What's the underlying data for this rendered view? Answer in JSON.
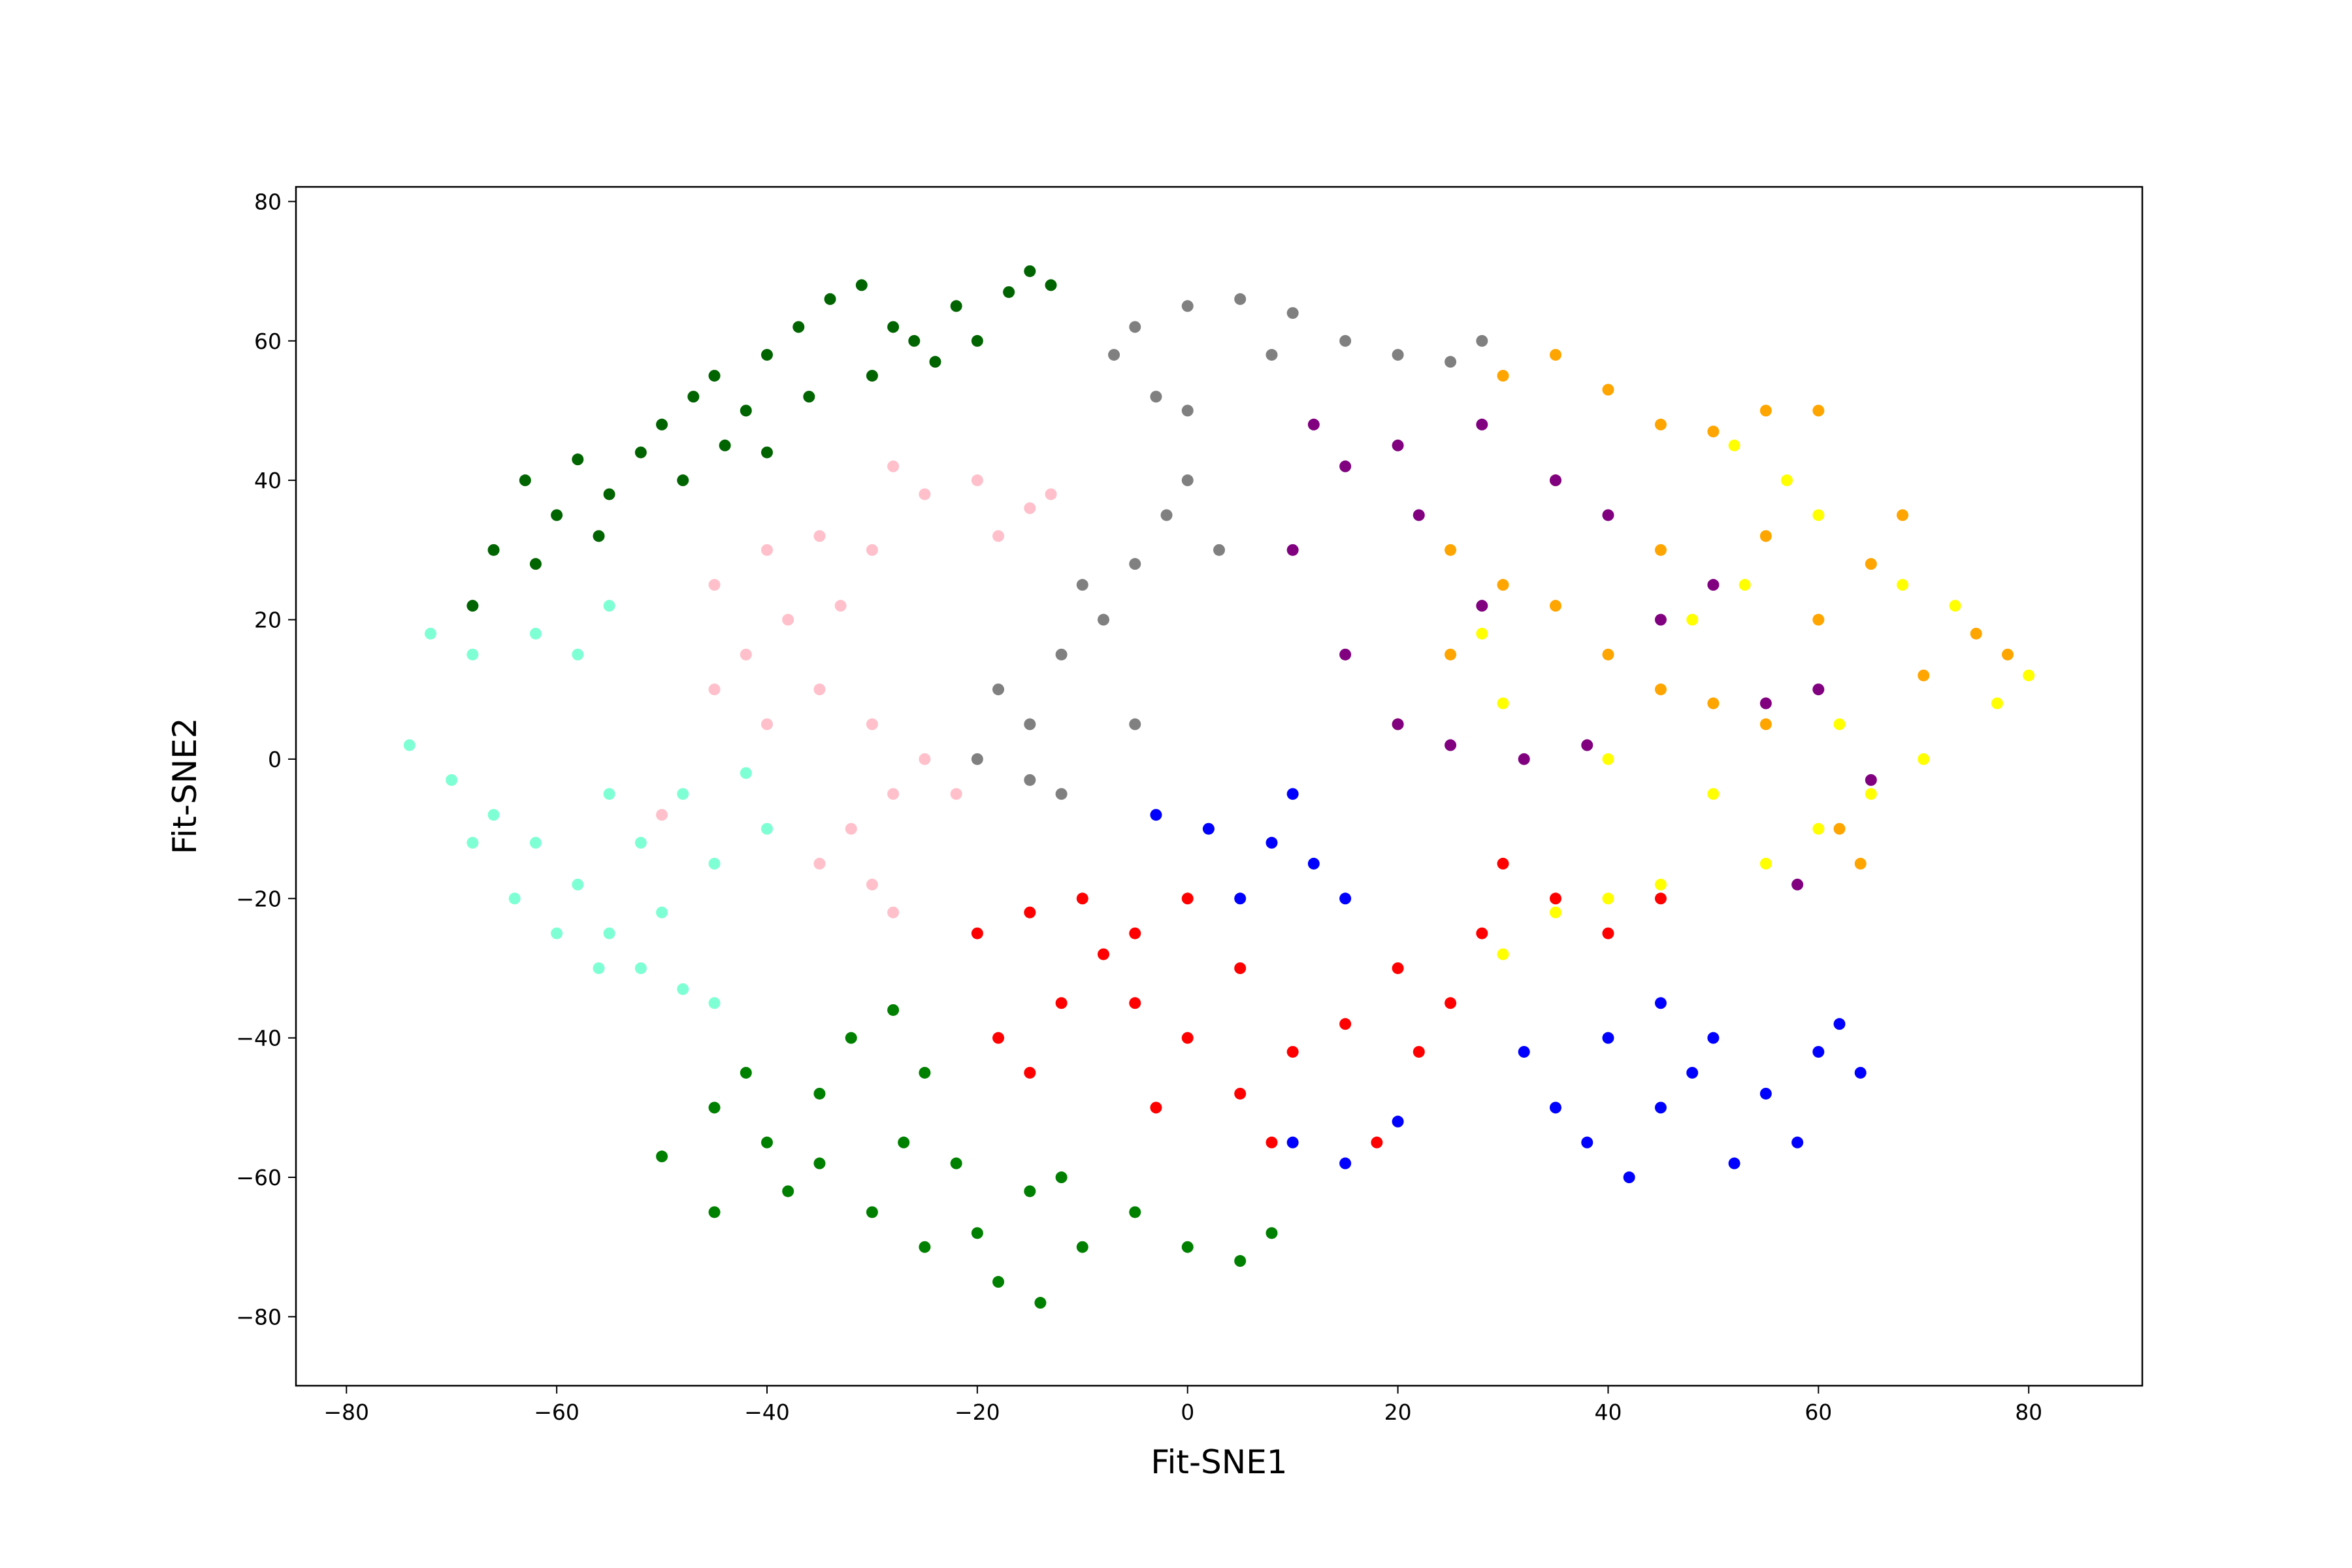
{
  "chart_data": {
    "type": "scatter",
    "x_label": "Fit-SNE1",
    "y_label": "Fit-SNE2",
    "xlim": [
      -84.8,
      90.8
    ],
    "ylim": [
      -89.9,
      82.1
    ],
    "xticks": [
      {
        "value": -80,
        "label": "−80"
      },
      {
        "value": -60,
        "label": "−60"
      },
      {
        "value": -40,
        "label": "−40"
      },
      {
        "value": -20,
        "label": "−20"
      },
      0,
      20,
      40,
      60,
      80
    ],
    "yticks": [
      {
        "value": -80,
        "label": "−80"
      },
      {
        "value": -60,
        "label": "−60"
      },
      {
        "value": -40,
        "label": "−40"
      },
      {
        "value": -20,
        "label": "−20"
      },
      0,
      20,
      40,
      60,
      80
    ],
    "series": [
      {
        "color": "#006400",
        "x": [
          -68,
          -66,
          -63,
          -60,
          -58,
          -55,
          -52,
          -50,
          -47,
          -45,
          -42,
          -40,
          -37,
          -34,
          -31,
          -28,
          -26,
          -22,
          -20,
          -17,
          -15,
          -13,
          -48,
          -44,
          -36,
          -30,
          -62,
          -56,
          -24,
          -40
        ],
        "values": [
          22,
          30,
          40,
          35,
          43,
          38,
          44,
          48,
          52,
          55,
          50,
          58,
          62,
          66,
          68,
          62,
          60,
          65,
          60,
          67,
          70,
          68,
          40,
          45,
          52,
          55,
          28,
          32,
          57,
          44
        ]
      },
      {
        "color": "#7fffd4",
        "x": [
          -72,
          -68,
          -62,
          -58,
          -55,
          -74,
          -70,
          -66,
          -62,
          -58,
          -55,
          -52,
          -48,
          -45,
          -50,
          -45,
          -40,
          -42,
          -48,
          -55,
          -60,
          -64,
          -56,
          -68,
          -52
        ],
        "values": [
          18,
          15,
          18,
          15,
          22,
          2,
          -3,
          -8,
          -12,
          -18,
          -25,
          -30,
          -33,
          -35,
          -22,
          -15,
          -10,
          -2,
          -5,
          -5,
          -25,
          -20,
          -30,
          -12,
          -12
        ]
      },
      {
        "color": "#ffc0cb",
        "x": [
          -45,
          -40,
          -35,
          -30,
          -25,
          -20,
          -15,
          -13,
          -28,
          -38,
          -35,
          -30,
          -25,
          -28,
          -32,
          -30,
          -28,
          -35,
          -40,
          -45,
          -50,
          -22,
          -18,
          -33,
          -42
        ],
        "values": [
          25,
          30,
          32,
          30,
          38,
          40,
          36,
          38,
          42,
          20,
          10,
          5,
          0,
          -5,
          -10,
          -18,
          -22,
          -15,
          5,
          10,
          -8,
          -5,
          32,
          22,
          15
        ]
      },
      {
        "color": "#808080",
        "x": [
          -7,
          -5,
          0,
          5,
          10,
          15,
          20,
          25,
          28,
          8,
          -3,
          0,
          -18,
          -15,
          -20,
          -12,
          -8,
          -5,
          -2,
          0,
          3,
          -10,
          -15,
          -12,
          -5
        ],
        "values": [
          58,
          62,
          65,
          66,
          64,
          60,
          58,
          57,
          60,
          58,
          52,
          50,
          10,
          5,
          0,
          15,
          20,
          28,
          35,
          40,
          30,
          25,
          -3,
          -5,
          5
        ]
      },
      {
        "color": "#ffa500",
        "x": [
          30,
          35,
          40,
          45,
          50,
          55,
          60,
          25,
          30,
          35,
          40,
          45,
          50,
          55,
          60,
          65,
          70,
          75,
          78,
          62,
          20,
          25,
          35,
          45,
          55,
          68,
          64
        ],
        "values": [
          55,
          58,
          53,
          48,
          47,
          50,
          50,
          30,
          25,
          22,
          15,
          10,
          8,
          5,
          20,
          28,
          12,
          18,
          15,
          -10,
          5,
          15,
          40,
          30,
          32,
          35,
          -15
        ]
      },
      {
        "color": "#ffff00",
        "x": [
          52,
          57,
          60,
          68,
          73,
          80,
          77,
          70,
          65,
          60,
          55,
          45,
          40,
          35,
          30,
          48,
          53,
          40,
          30,
          28,
          62,
          50
        ],
        "values": [
          45,
          40,
          35,
          25,
          22,
          12,
          8,
          0,
          -5,
          -10,
          -15,
          -18,
          -20,
          -22,
          -28,
          20,
          25,
          0,
          8,
          18,
          5,
          -5
        ]
      },
      {
        "color": "#800080",
        "x": [
          12,
          15,
          20,
          22,
          28,
          10,
          15,
          20,
          25,
          32,
          38,
          45,
          50,
          40,
          55,
          60,
          65,
          58,
          35,
          28
        ],
        "values": [
          48,
          42,
          45,
          35,
          48,
          30,
          15,
          5,
          2,
          0,
          2,
          20,
          25,
          35,
          8,
          10,
          -3,
          -18,
          40,
          22
        ]
      },
      {
        "color": "#ff0000",
        "x": [
          -20,
          -15,
          -10,
          -8,
          -12,
          -18,
          -15,
          -5,
          0,
          -3,
          5,
          10,
          15,
          20,
          25,
          28,
          22,
          30,
          35,
          40,
          45,
          -5,
          5,
          8,
          18,
          0
        ],
        "values": [
          -25,
          -22,
          -20,
          -28,
          -35,
          -40,
          -45,
          -35,
          -40,
          -50,
          -48,
          -42,
          -38,
          -30,
          -35,
          -25,
          -42,
          -15,
          -20,
          -25,
          -20,
          -25,
          -30,
          -55,
          -55,
          -20
        ]
      },
      {
        "color": "#0000ff",
        "x": [
          -3,
          2,
          8,
          12,
          15,
          10,
          5,
          32,
          35,
          38,
          42,
          45,
          48,
          50,
          55,
          58,
          60,
          62,
          64,
          52,
          40,
          45,
          10,
          15,
          20
        ],
        "values": [
          -8,
          -10,
          -12,
          -15,
          -20,
          -5,
          -20,
          -42,
          -50,
          -55,
          -60,
          -50,
          -45,
          -40,
          -48,
          -55,
          -42,
          -38,
          -45,
          -58,
          -40,
          -35,
          -55,
          -58,
          -52
        ]
      },
      {
        "color": "#008000",
        "x": [
          -50,
          -45,
          -42,
          -40,
          -38,
          -35,
          -32,
          -28,
          -25,
          -27,
          -22,
          -30,
          -25,
          -20,
          -15,
          -12,
          -10,
          -14,
          -5,
          0,
          5,
          8,
          -18,
          -45,
          -35
        ],
        "values": [
          -57,
          -50,
          -45,
          -55,
          -62,
          -48,
          -40,
          -36,
          -45,
          -55,
          -58,
          -65,
          -70,
          -68,
          -62,
          -60,
          -70,
          -78,
          -65,
          -70,
          -72,
          -68,
          -75,
          -65,
          -58
        ]
      }
    ]
  }
}
